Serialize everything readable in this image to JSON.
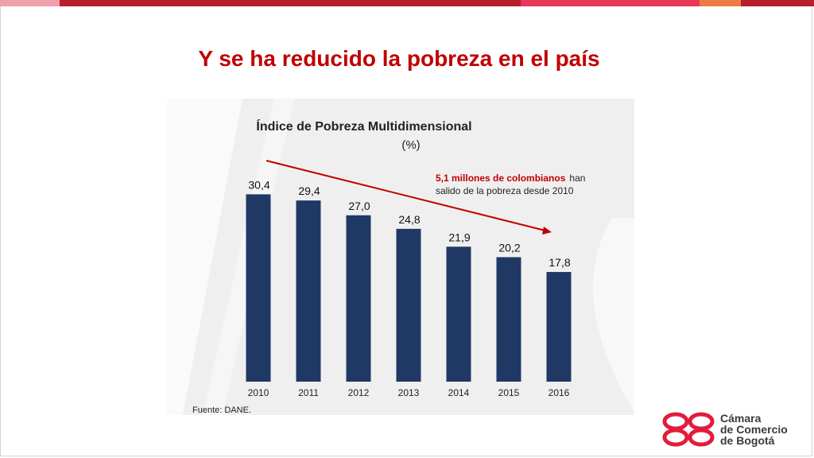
{
  "slide": {
    "title": "Y se ha reducido la pobreza en el país"
  },
  "colors": {
    "title": "#c00000",
    "bar": "#203864",
    "arrow": "#c00000",
    "logo": "#e31b3c",
    "chart_bg": "#efefef"
  },
  "chart_data": {
    "type": "bar",
    "title": "Índice de Pobreza Multidimensional",
    "subtitle": "(%)",
    "categories": [
      "2010",
      "2011",
      "2012",
      "2013",
      "2014",
      "2015",
      "2016"
    ],
    "values": [
      30.4,
      29.4,
      27.0,
      24.8,
      21.9,
      20.2,
      17.8
    ],
    "value_labels": [
      "30,4",
      "29,4",
      "27,0",
      "24,8",
      "21,9",
      "20,2",
      "17,8"
    ],
    "ylim": [
      0,
      32
    ],
    "xlabel": "",
    "ylabel": "",
    "grid": false,
    "legend": "none",
    "annotation": {
      "bold_text": "5,1 millones de colombianos",
      "text_1": "han",
      "text_2": "salido de la pobreza desde 2010",
      "arrow_from": "2010",
      "arrow_to": "2016"
    },
    "source": "Fuente: DANE."
  },
  "logo": {
    "line1": "Cámara",
    "line2": "de Comercio",
    "line3": "de Bogotá"
  }
}
